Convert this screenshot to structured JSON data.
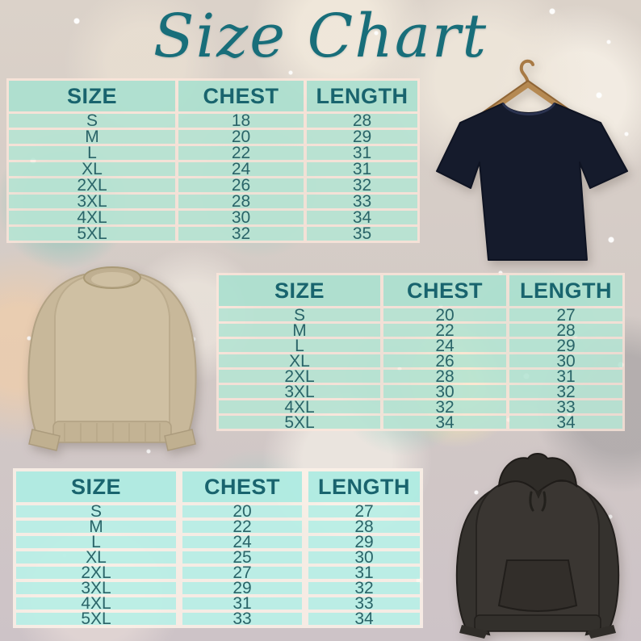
{
  "title": "Size Chart",
  "colors": {
    "title_text": "#186e7a",
    "table_header_text": "#19646e",
    "table_value_text": "#2a6468",
    "table_row_bg": "#9be2d0",
    "table_separator": "#fce7db",
    "tshirt_color": "#151b2c",
    "sweatshirt_color": "#cfc0a3",
    "hoodie_color": "#3a3632",
    "hanger_color": "#b58952"
  },
  "tables": [
    {
      "garment": "t-shirt",
      "headers": [
        "SIZE",
        "CHEST",
        "LENGTH"
      ],
      "rows": [
        [
          "S",
          "18",
          "28"
        ],
        [
          "M",
          "20",
          "29"
        ],
        [
          "L",
          "22",
          "31"
        ],
        [
          "XL",
          "24",
          "31"
        ],
        [
          "2XL",
          "26",
          "32"
        ],
        [
          "3XL",
          "28",
          "33"
        ],
        [
          "4XL",
          "30",
          "34"
        ],
        [
          "5XL",
          "32",
          "35"
        ]
      ]
    },
    {
      "garment": "sweatshirt",
      "headers": [
        "SIZE",
        "CHEST",
        "LENGTH"
      ],
      "rows": [
        [
          "S",
          "20",
          "27"
        ],
        [
          "M",
          "22",
          "28"
        ],
        [
          "L",
          "24",
          "29"
        ],
        [
          "XL",
          "26",
          "30"
        ],
        [
          "2XL",
          "28",
          "31"
        ],
        [
          "3XL",
          "30",
          "32"
        ],
        [
          "4XL",
          "32",
          "33"
        ],
        [
          "5XL",
          "34",
          "34"
        ]
      ]
    },
    {
      "garment": "hoodie",
      "headers": [
        "SIZE",
        "CHEST",
        "LENGTH"
      ],
      "rows": [
        [
          "S",
          "20",
          "27"
        ],
        [
          "M",
          "22",
          "28"
        ],
        [
          "L",
          "24",
          "29"
        ],
        [
          "XL",
          "25",
          "30"
        ],
        [
          "2XL",
          "27",
          "31"
        ],
        [
          "3XL",
          "29",
          "32"
        ],
        [
          "4XL",
          "31",
          "33"
        ],
        [
          "5XL",
          "33",
          "34"
        ]
      ]
    }
  ]
}
